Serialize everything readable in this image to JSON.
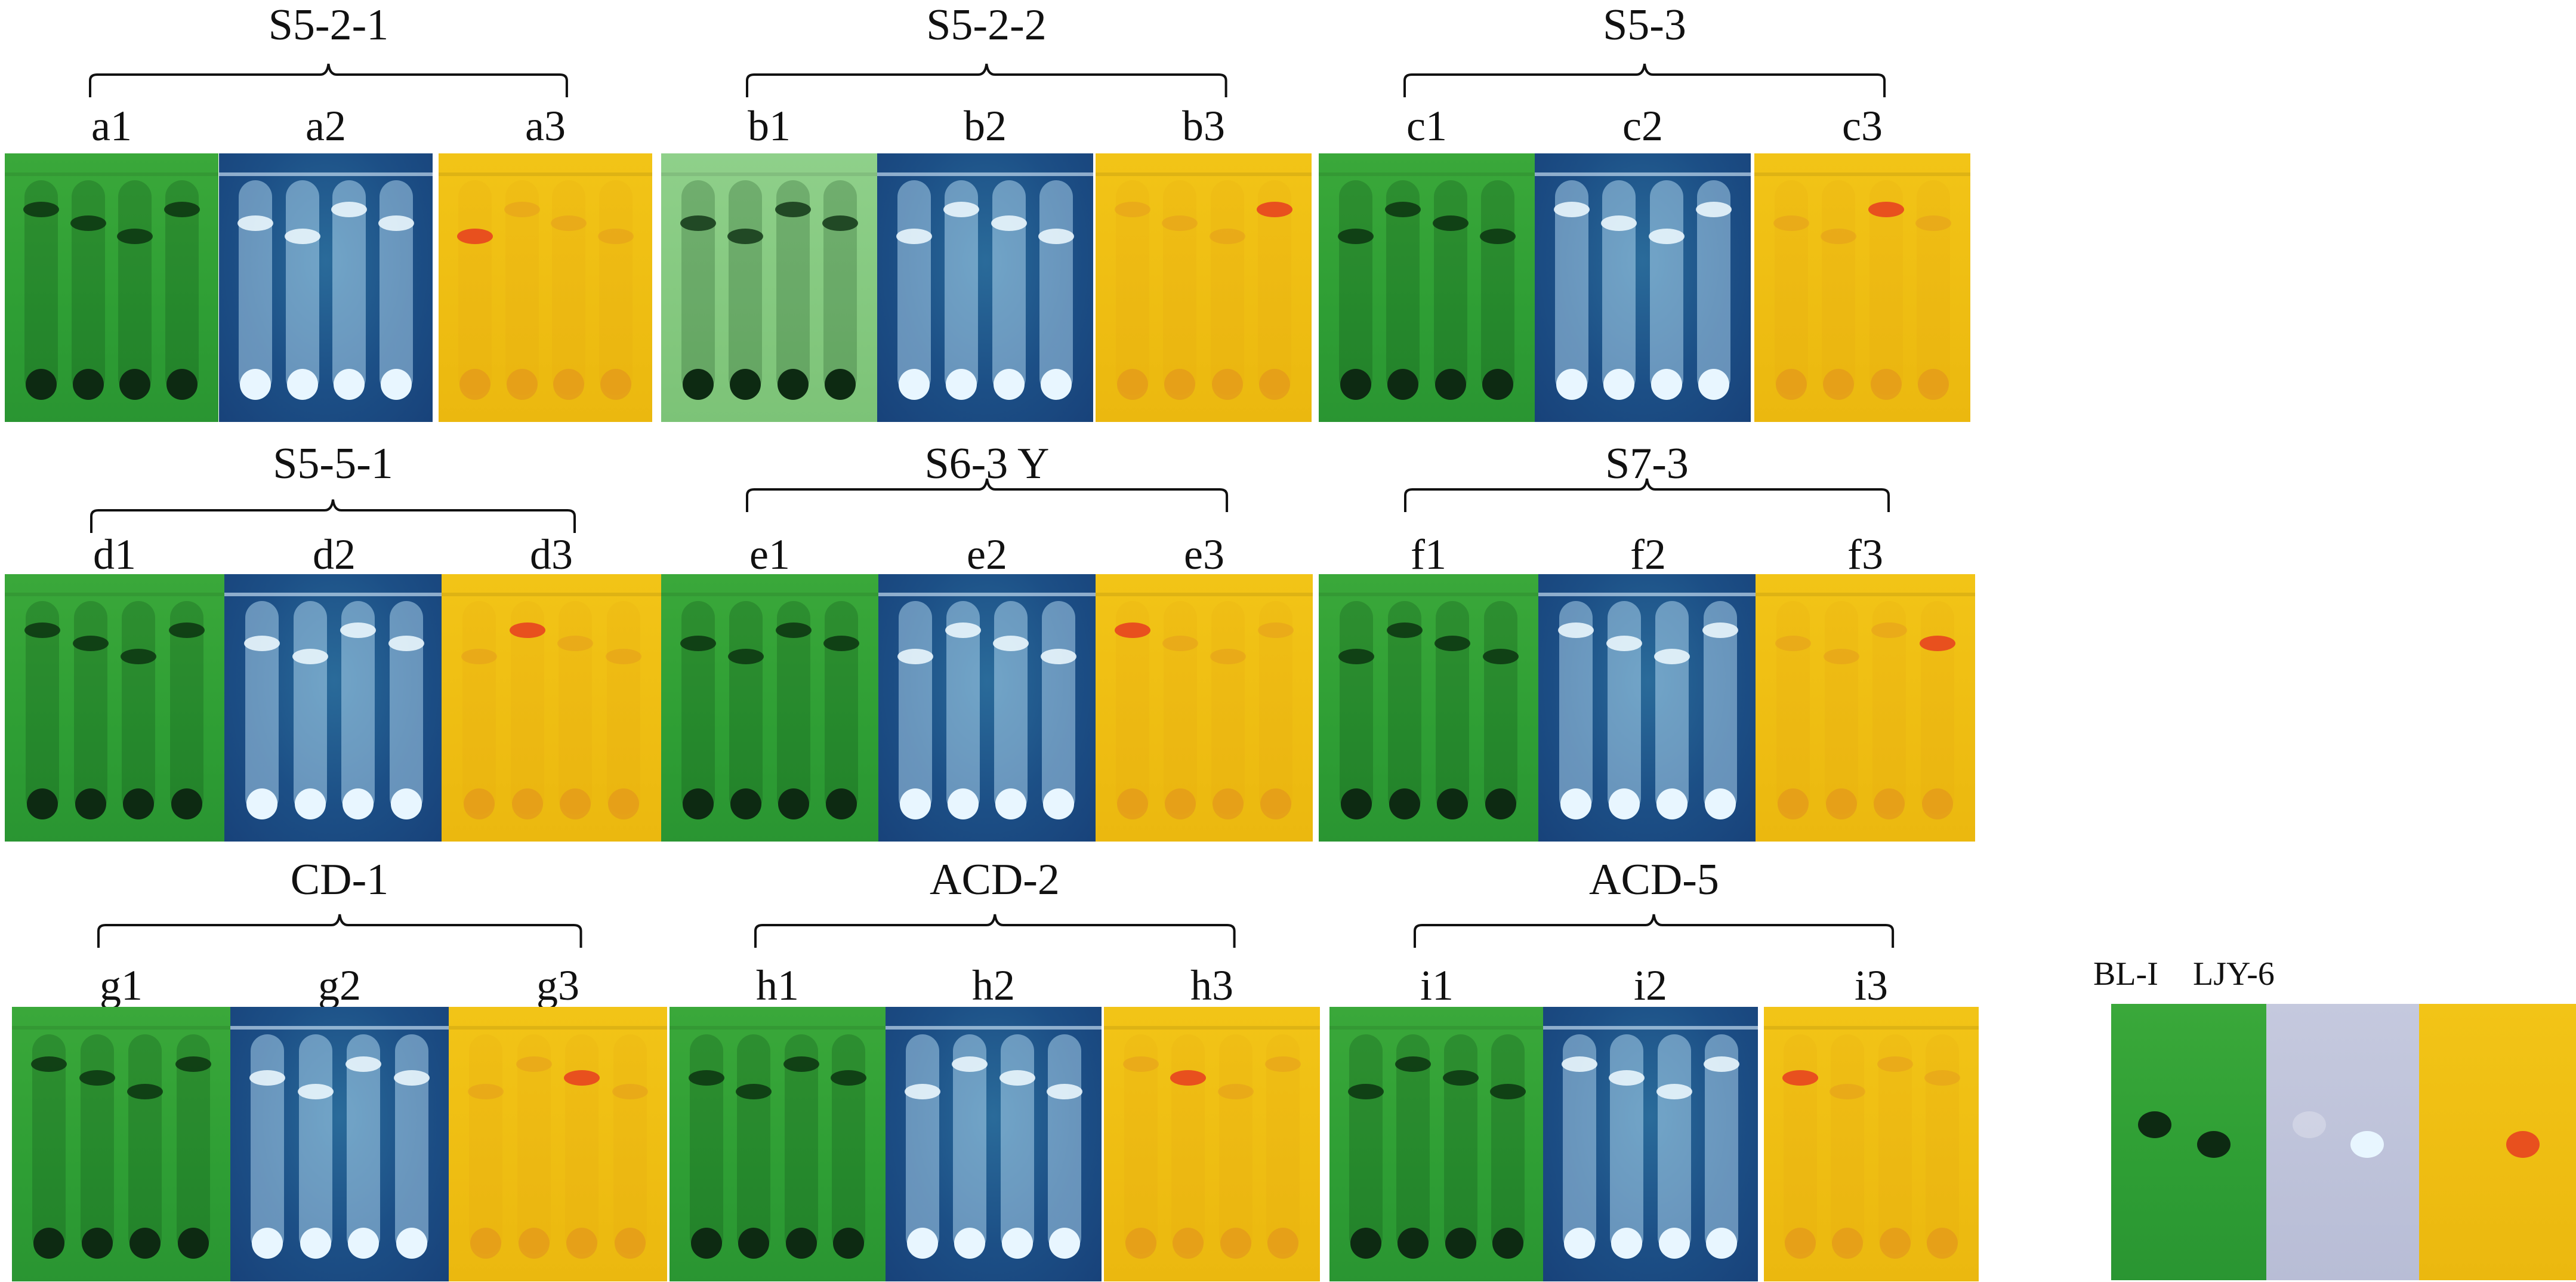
{
  "groups": [
    {
      "id": "a",
      "label": "S5-2-1",
      "plates": [
        "a1",
        "a2",
        "a3"
      ]
    },
    {
      "id": "b",
      "label": "S5-2-2",
      "plates": [
        "b1",
        "b2",
        "b3"
      ]
    },
    {
      "id": "c",
      "label": "S5-3",
      "plates": [
        "c1",
        "c2",
        "c3"
      ]
    },
    {
      "id": "d",
      "label": "S5-5-1",
      "plates": [
        "d1",
        "d2",
        "d3"
      ]
    },
    {
      "id": "e",
      "label": "S6-3 Y",
      "plates": [
        "e1",
        "e2",
        "e3"
      ]
    },
    {
      "id": "f",
      "label": "S7-3",
      "plates": [
        "f1",
        "f2",
        "f3"
      ]
    },
    {
      "id": "g",
      "label": "CD-1",
      "plates": [
        "g1",
        "g2",
        "g3"
      ]
    },
    {
      "id": "h",
      "label": "ACD-2",
      "plates": [
        "h1",
        "h2",
        "h3"
      ]
    },
    {
      "id": "i",
      "label": "ACD-5",
      "plates": [
        "i1",
        "i2",
        "i3"
      ]
    }
  ],
  "standards": {
    "labels": [
      "BL-I",
      "LJY-6"
    ]
  },
  "colors": {
    "uv254_green": "#2e9e34",
    "uv365_blue": "#1c4f86",
    "spray_yellow": "#eebd12",
    "spot_dark": "#0d2a12",
    "fluor_white": "#e8f6ff",
    "spot_red": "#e8501e"
  }
}
